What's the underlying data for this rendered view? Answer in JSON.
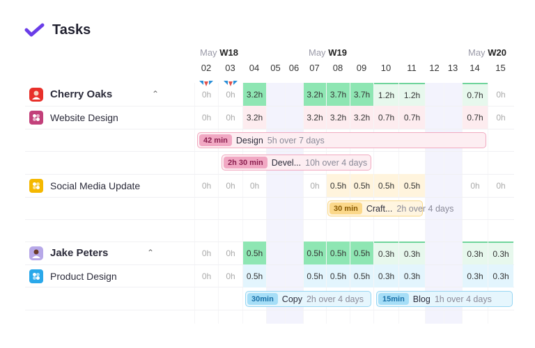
{
  "header": {
    "title": "Tasks",
    "logo_icon": "checkmark-logo-icon"
  },
  "weeks": [
    {
      "month": "May",
      "week": "W18"
    },
    {
      "month": "May",
      "week": "W19"
    },
    {
      "month": "May",
      "week": "W20"
    }
  ],
  "dates": [
    "02",
    "03",
    "04",
    "05",
    "06",
    "07",
    "08",
    "09",
    "10",
    "11",
    "12",
    "13",
    "14",
    "15"
  ],
  "holiday_icon": "bunting-flag-icon",
  "rows": [
    {
      "type": "person",
      "label": "Cherry Oaks",
      "icon": "avatar",
      "values": [
        "0h",
        "0h",
        "3.2h",
        "",
        "",
        "3.2h",
        "3.7h",
        "3.7h",
        "1.2h",
        "1.2h",
        "",
        "",
        "0.7h",
        "0h"
      ],
      "styles": [
        "z",
        "z",
        "strong",
        "",
        "",
        "strong",
        "strong",
        "strong",
        "light",
        "light",
        "",
        "",
        "light",
        "z"
      ]
    },
    {
      "type": "project",
      "label": "Website Design",
      "color": "#c2407a",
      "values": [
        "0h",
        "0h",
        "3.2h",
        "",
        "",
        "3.2h",
        "3.2h",
        "3.2h",
        "0.7h",
        "0.7h",
        "",
        "",
        "0.7h",
        "0h"
      ],
      "styles": [
        "z",
        "z",
        "pink",
        "",
        "",
        "pink",
        "pink",
        "pink",
        "pink",
        "pink",
        "",
        "",
        "pink",
        "z"
      ]
    },
    {
      "type": "project",
      "label": "Social Media Update",
      "color": "#f5b800",
      "values": [
        "0h",
        "0h",
        "0h",
        "",
        "",
        "0h",
        "0.5h",
        "0.5h",
        "0.5h",
        "0.5h",
        "",
        "",
        "0h",
        "0h"
      ],
      "styles": [
        "z",
        "z",
        "z",
        "",
        "",
        "z",
        "yellow",
        "yellow",
        "yellow",
        "yellow",
        "",
        "",
        "z",
        "z"
      ]
    },
    {
      "type": "person",
      "label": "Jake Peters",
      "icon": "avatar",
      "values": [
        "0h",
        "0h",
        "0.5h",
        "",
        "",
        "0.5h",
        "0.5h",
        "0.5h",
        "0.3h",
        "0.3h",
        "",
        "",
        "0.3h",
        "0.3h"
      ],
      "styles": [
        "z",
        "z",
        "strong",
        "",
        "",
        "strong",
        "strong",
        "strong",
        "light",
        "light",
        "",
        "",
        "light",
        "light"
      ]
    },
    {
      "type": "project",
      "label": "Product Design",
      "color": "#2aa8ea",
      "values": [
        "0h",
        "0h",
        "0.5h",
        "",
        "",
        "0.5h",
        "0.5h",
        "0.5h",
        "0.3h",
        "0.3h",
        "",
        "",
        "0.3h",
        "0.3h"
      ],
      "styles": [
        "z",
        "z",
        "blue",
        "",
        "",
        "blue",
        "blue",
        "blue",
        "blue",
        "blue",
        "",
        "",
        "blue",
        "blue"
      ]
    }
  ],
  "tasks": [
    {
      "tag": "42 min",
      "name": "Design",
      "detail": "5h over 7 days",
      "theme": "pink"
    },
    {
      "tag": "2h 30 min",
      "name": "Devel...",
      "detail": "10h over 4 days",
      "theme": "pink"
    },
    {
      "tag": "30 min",
      "name": "Craft...",
      "detail": "2h over 4 days",
      "theme": "yellow"
    },
    {
      "tag": "30min",
      "name": "Copy",
      "detail": "2h over 4 days",
      "theme": "blue"
    },
    {
      "tag": "15min",
      "name": "Blog",
      "detail": "1h over 4 days",
      "theme": "blue"
    }
  ],
  "colors": {
    "strong_green": "#8ee6b3",
    "light_green": "#e7f8ed",
    "pink": "#fdecef",
    "yellow": "#fff4dd",
    "blue": "#e3f5fd",
    "weekend": "#f3f3fd"
  }
}
